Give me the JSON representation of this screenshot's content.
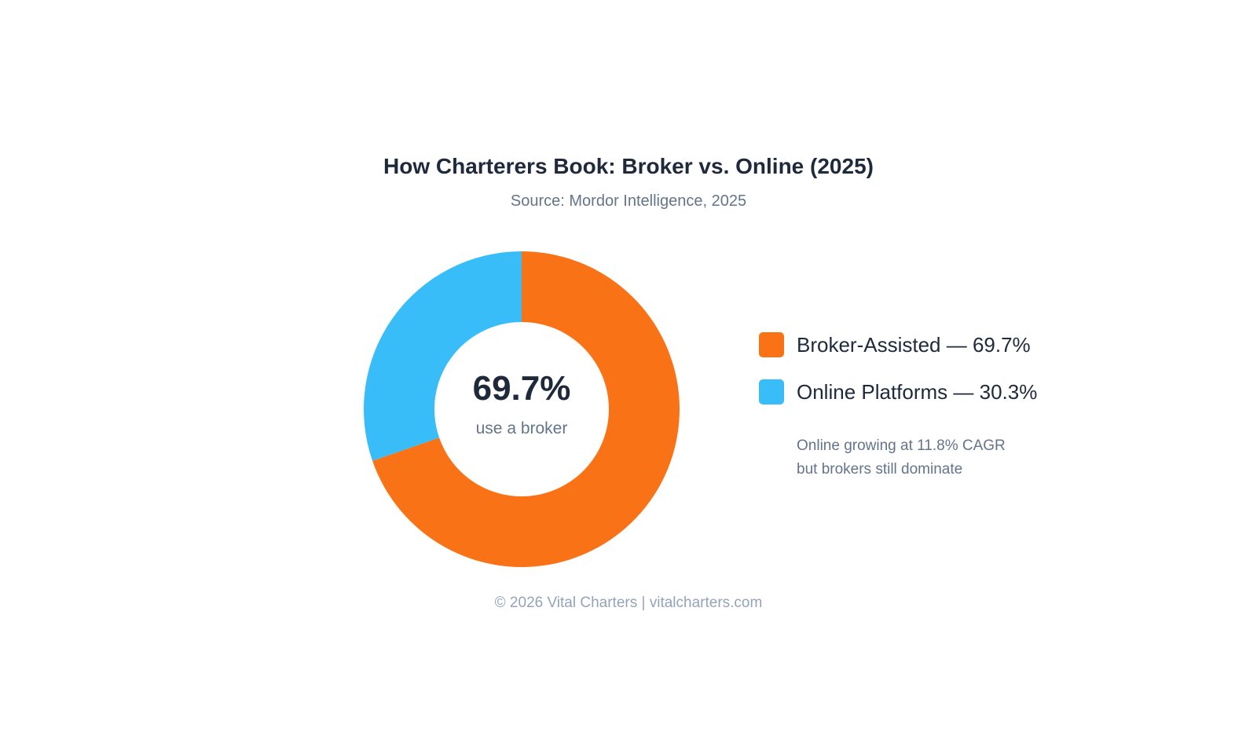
{
  "chart_data": {
    "type": "pie",
    "title": "How Charterers Book: Broker vs. Online (2025)",
    "subtitle": "Source: Mordor Intelligence, 2025",
    "series": [
      {
        "name": "Broker-Assisted",
        "value": 69.7,
        "color": "#f97316",
        "label": "Broker-Assisted — 69.7%"
      },
      {
        "name": "Online Platforms",
        "value": 30.3,
        "color": "#38bdf8",
        "label": "Online Platforms — 30.3%"
      }
    ],
    "donut": true,
    "center_value": "69.7%",
    "center_caption": "use a broker",
    "legend_position": "right",
    "annotation_lines": [
      "Online growing at 11.8% CAGR",
      "but brokers still dominate"
    ]
  },
  "footer": "© 2026 Vital Charters | vitalcharters.com"
}
